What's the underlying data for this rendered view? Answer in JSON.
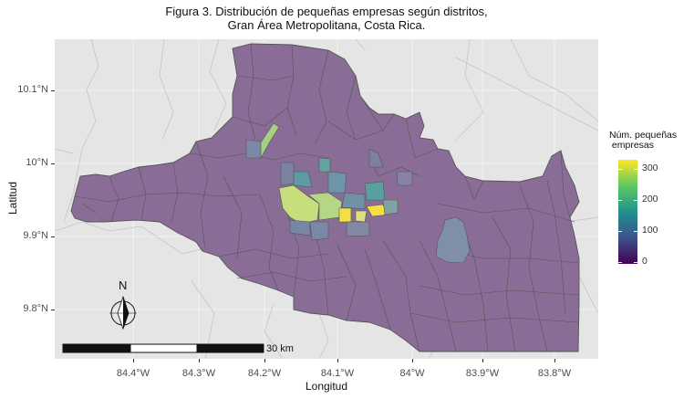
{
  "title_line1": "Figura 3. Distribución de pequeñas empresas según distritos,",
  "title_line2": "Gran Área Metropolitana, Costa Rica.",
  "axes": {
    "xlabel": "Longitud",
    "ylabel": "Latitud",
    "xticks": [
      "84.4°W",
      "84.3°W",
      "84.2°W",
      "84.1°W",
      "84°W",
      "83.9°W",
      "83.8°W"
    ],
    "yticks": [
      "10.1°N",
      "10°N",
      "9.9°N",
      "9.8°N"
    ]
  },
  "legend": {
    "title_line1": "Núm. pequeñas",
    "title_line2": " empresas",
    "ticks": [
      "300",
      "200",
      "100",
      "0"
    ],
    "scale_min": 0,
    "scale_max": 320,
    "palette": "viridis"
  },
  "north_arrow": {
    "label": "N"
  },
  "scale_bar": {
    "label": "30 km"
  },
  "colors": {
    "panel_background": "#e5e5e5",
    "district_default": "#8a6d97",
    "district_border": "#555555",
    "high_value": "#f5e043",
    "mid_value": "#c6de7c",
    "teal_value": "#5e9aa3"
  }
}
